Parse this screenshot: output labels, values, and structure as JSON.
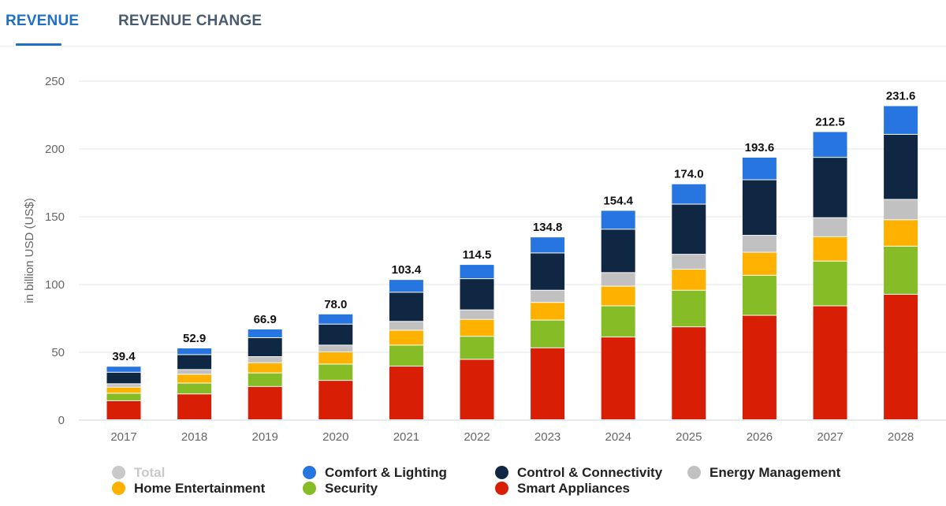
{
  "tabs": [
    {
      "label": "REVENUE",
      "active": true
    },
    {
      "label": "REVENUE CHANGE",
      "active": false
    }
  ],
  "chart_data": {
    "type": "bar",
    "stacked": true,
    "ylabel": "in billion USD (US$)",
    "ylim": [
      0,
      250
    ],
    "yticks": [
      0,
      50,
      100,
      150,
      200,
      250
    ],
    "grid": true,
    "legend_position": "bottom",
    "categories": [
      "2017",
      "2018",
      "2019",
      "2020",
      "2021",
      "2022",
      "2023",
      "2024",
      "2025",
      "2026",
      "2027",
      "2028"
    ],
    "totals": [
      "39.4",
      "52.9",
      "66.9",
      "78.0",
      "103.4",
      "114.5",
      "134.8",
      "154.4",
      "174.0",
      "193.6",
      "212.5",
      "231.6"
    ],
    "series": [
      {
        "name": "Smart Appliances",
        "color": "#d81e05",
        "values": [
          14.0,
          19.0,
          24.5,
          29.0,
          39.5,
          44.5,
          53.0,
          61.0,
          68.5,
          77.0,
          84.0,
          92.5
        ]
      },
      {
        "name": "Security",
        "color": "#86bc25",
        "values": [
          5.5,
          8.0,
          10.0,
          12.0,
          15.5,
          17.0,
          20.5,
          23.0,
          27.0,
          29.5,
          33.0,
          35.5
        ]
      },
      {
        "name": "Home Entertainment",
        "color": "#ffb100",
        "values": [
          4.5,
          6.5,
          7.5,
          9.0,
          11.0,
          12.5,
          13.0,
          14.5,
          15.5,
          17.0,
          18.0,
          19.5
        ]
      },
      {
        "name": "Energy Management",
        "color": "#c1c1c1",
        "values": [
          2.5,
          3.5,
          4.5,
          5.0,
          6.5,
          7.0,
          9.0,
          10.0,
          11.0,
          12.5,
          14.0,
          15.0
        ]
      },
      {
        "name": "Control & Connectivity",
        "color": "#0f2742",
        "values": [
          8.5,
          11.0,
          14.0,
          15.5,
          21.5,
          23.0,
          27.5,
          32.0,
          37.0,
          41.0,
          44.5,
          48.0
        ]
      },
      {
        "name": "Comfort & Lighting",
        "color": "#2675e0",
        "values": [
          4.4,
          4.9,
          6.4,
          7.5,
          9.4,
          10.5,
          11.8,
          13.9,
          15.0,
          16.6,
          19.0,
          21.1
        ]
      }
    ],
    "legend": [
      {
        "name": "Total",
        "color": "#c9c9c9",
        "disabled": true
      },
      {
        "name": "Comfort & Lighting",
        "color": "#2675e0"
      },
      {
        "name": "Control & Connectivity",
        "color": "#0f2742"
      },
      {
        "name": "Energy Management",
        "color": "#c1c1c1"
      },
      {
        "name": "Home Entertainment",
        "color": "#ffb100"
      },
      {
        "name": "Security",
        "color": "#86bc25"
      },
      {
        "name": "Smart Appliances",
        "color": "#d81e05"
      }
    ]
  }
}
